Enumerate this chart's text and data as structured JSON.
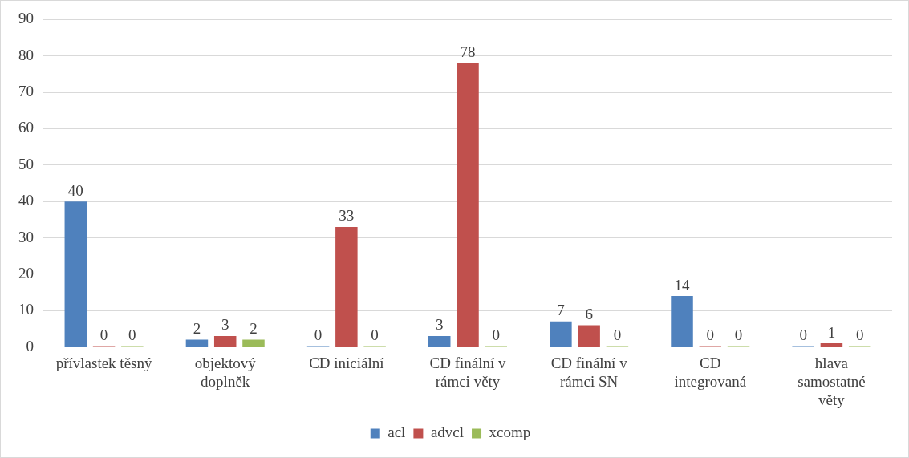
{
  "chart_data": {
    "type": "bar",
    "categories": [
      "přívlastek těsný",
      "objektový doplněk",
      "CD iniciální",
      "CD finální v rámci věty",
      "CD finální v rámci SN",
      "CD integrovaná",
      "hlava samostatné věty"
    ],
    "series": [
      {
        "name": "acl",
        "color": "#4f81bd",
        "values": [
          40,
          2,
          0,
          3,
          7,
          14,
          0
        ]
      },
      {
        "name": "advcl",
        "color": "#c0504d",
        "values": [
          0,
          3,
          33,
          78,
          6,
          0,
          1
        ]
      },
      {
        "name": "xcomp",
        "color": "#9bbb59",
        "values": [
          0,
          2,
          0,
          0,
          0,
          0,
          0
        ]
      }
    ],
    "ylim": [
      0,
      90
    ],
    "yticks": [
      0,
      10,
      20,
      30,
      40,
      50,
      60,
      70,
      80,
      90
    ],
    "grid": "y",
    "legend": "bottom",
    "data_labels": true
  }
}
